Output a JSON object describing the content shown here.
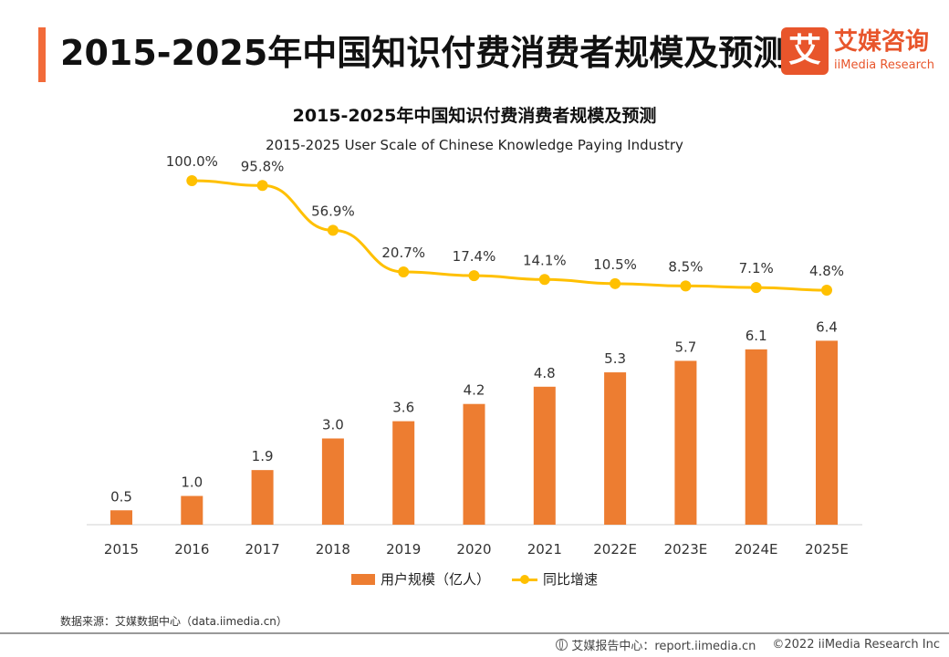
{
  "header": {
    "title": "2015-2025年中国知识付费消费者规模及预测",
    "logo_mark": "艾",
    "logo_cn": "艾媒咨询",
    "logo_en": "iiMedia Research"
  },
  "colors": {
    "accent": "#f26b3a",
    "bar": "#ed7d31",
    "line": "#ffc000",
    "brand": "#e8552b"
  },
  "chart_data": {
    "type": "bar",
    "title": "2015-2025年中国知识付费消费者规模及预测",
    "subtitle": "2015-2025 User Scale of Chinese Knowledge Paying Industry",
    "categories": [
      "2015",
      "2016",
      "2017",
      "2018",
      "2019",
      "2020",
      "2021",
      "2022E",
      "2023E",
      "2024E",
      "2025E"
    ],
    "series": [
      {
        "name": "用户规模（亿人）",
        "type": "bar",
        "values": [
          0.5,
          1.0,
          1.9,
          3.0,
          3.6,
          4.2,
          4.8,
          5.3,
          5.7,
          6.1,
          6.4
        ],
        "labels": [
          "0.5",
          "1.0",
          "1.9",
          "3.0",
          "3.6",
          "4.2",
          "4.8",
          "5.3",
          "5.7",
          "6.1",
          "6.4"
        ]
      },
      {
        "name": "同比增速",
        "type": "line",
        "values": [
          null,
          100.0,
          95.8,
          56.9,
          20.7,
          17.4,
          14.1,
          10.5,
          8.5,
          7.1,
          4.8
        ],
        "labels": [
          null,
          "100.0%",
          "95.8%",
          "56.9%",
          "20.7%",
          "17.4%",
          "14.1%",
          "10.5%",
          "8.5%",
          "7.1%",
          "4.8%"
        ]
      }
    ],
    "bar_axis_range": [
      0,
      9
    ],
    "line_axis_range": [
      0,
      100
    ],
    "grid": false,
    "legend_position": "bottom"
  },
  "footer": {
    "source": "数据来源：艾媒数据中心（data.iimedia.cn）",
    "report": "艾媒报告中心：report.iimedia.cn",
    "copyright": "©2022  iiMedia Research  Inc"
  }
}
